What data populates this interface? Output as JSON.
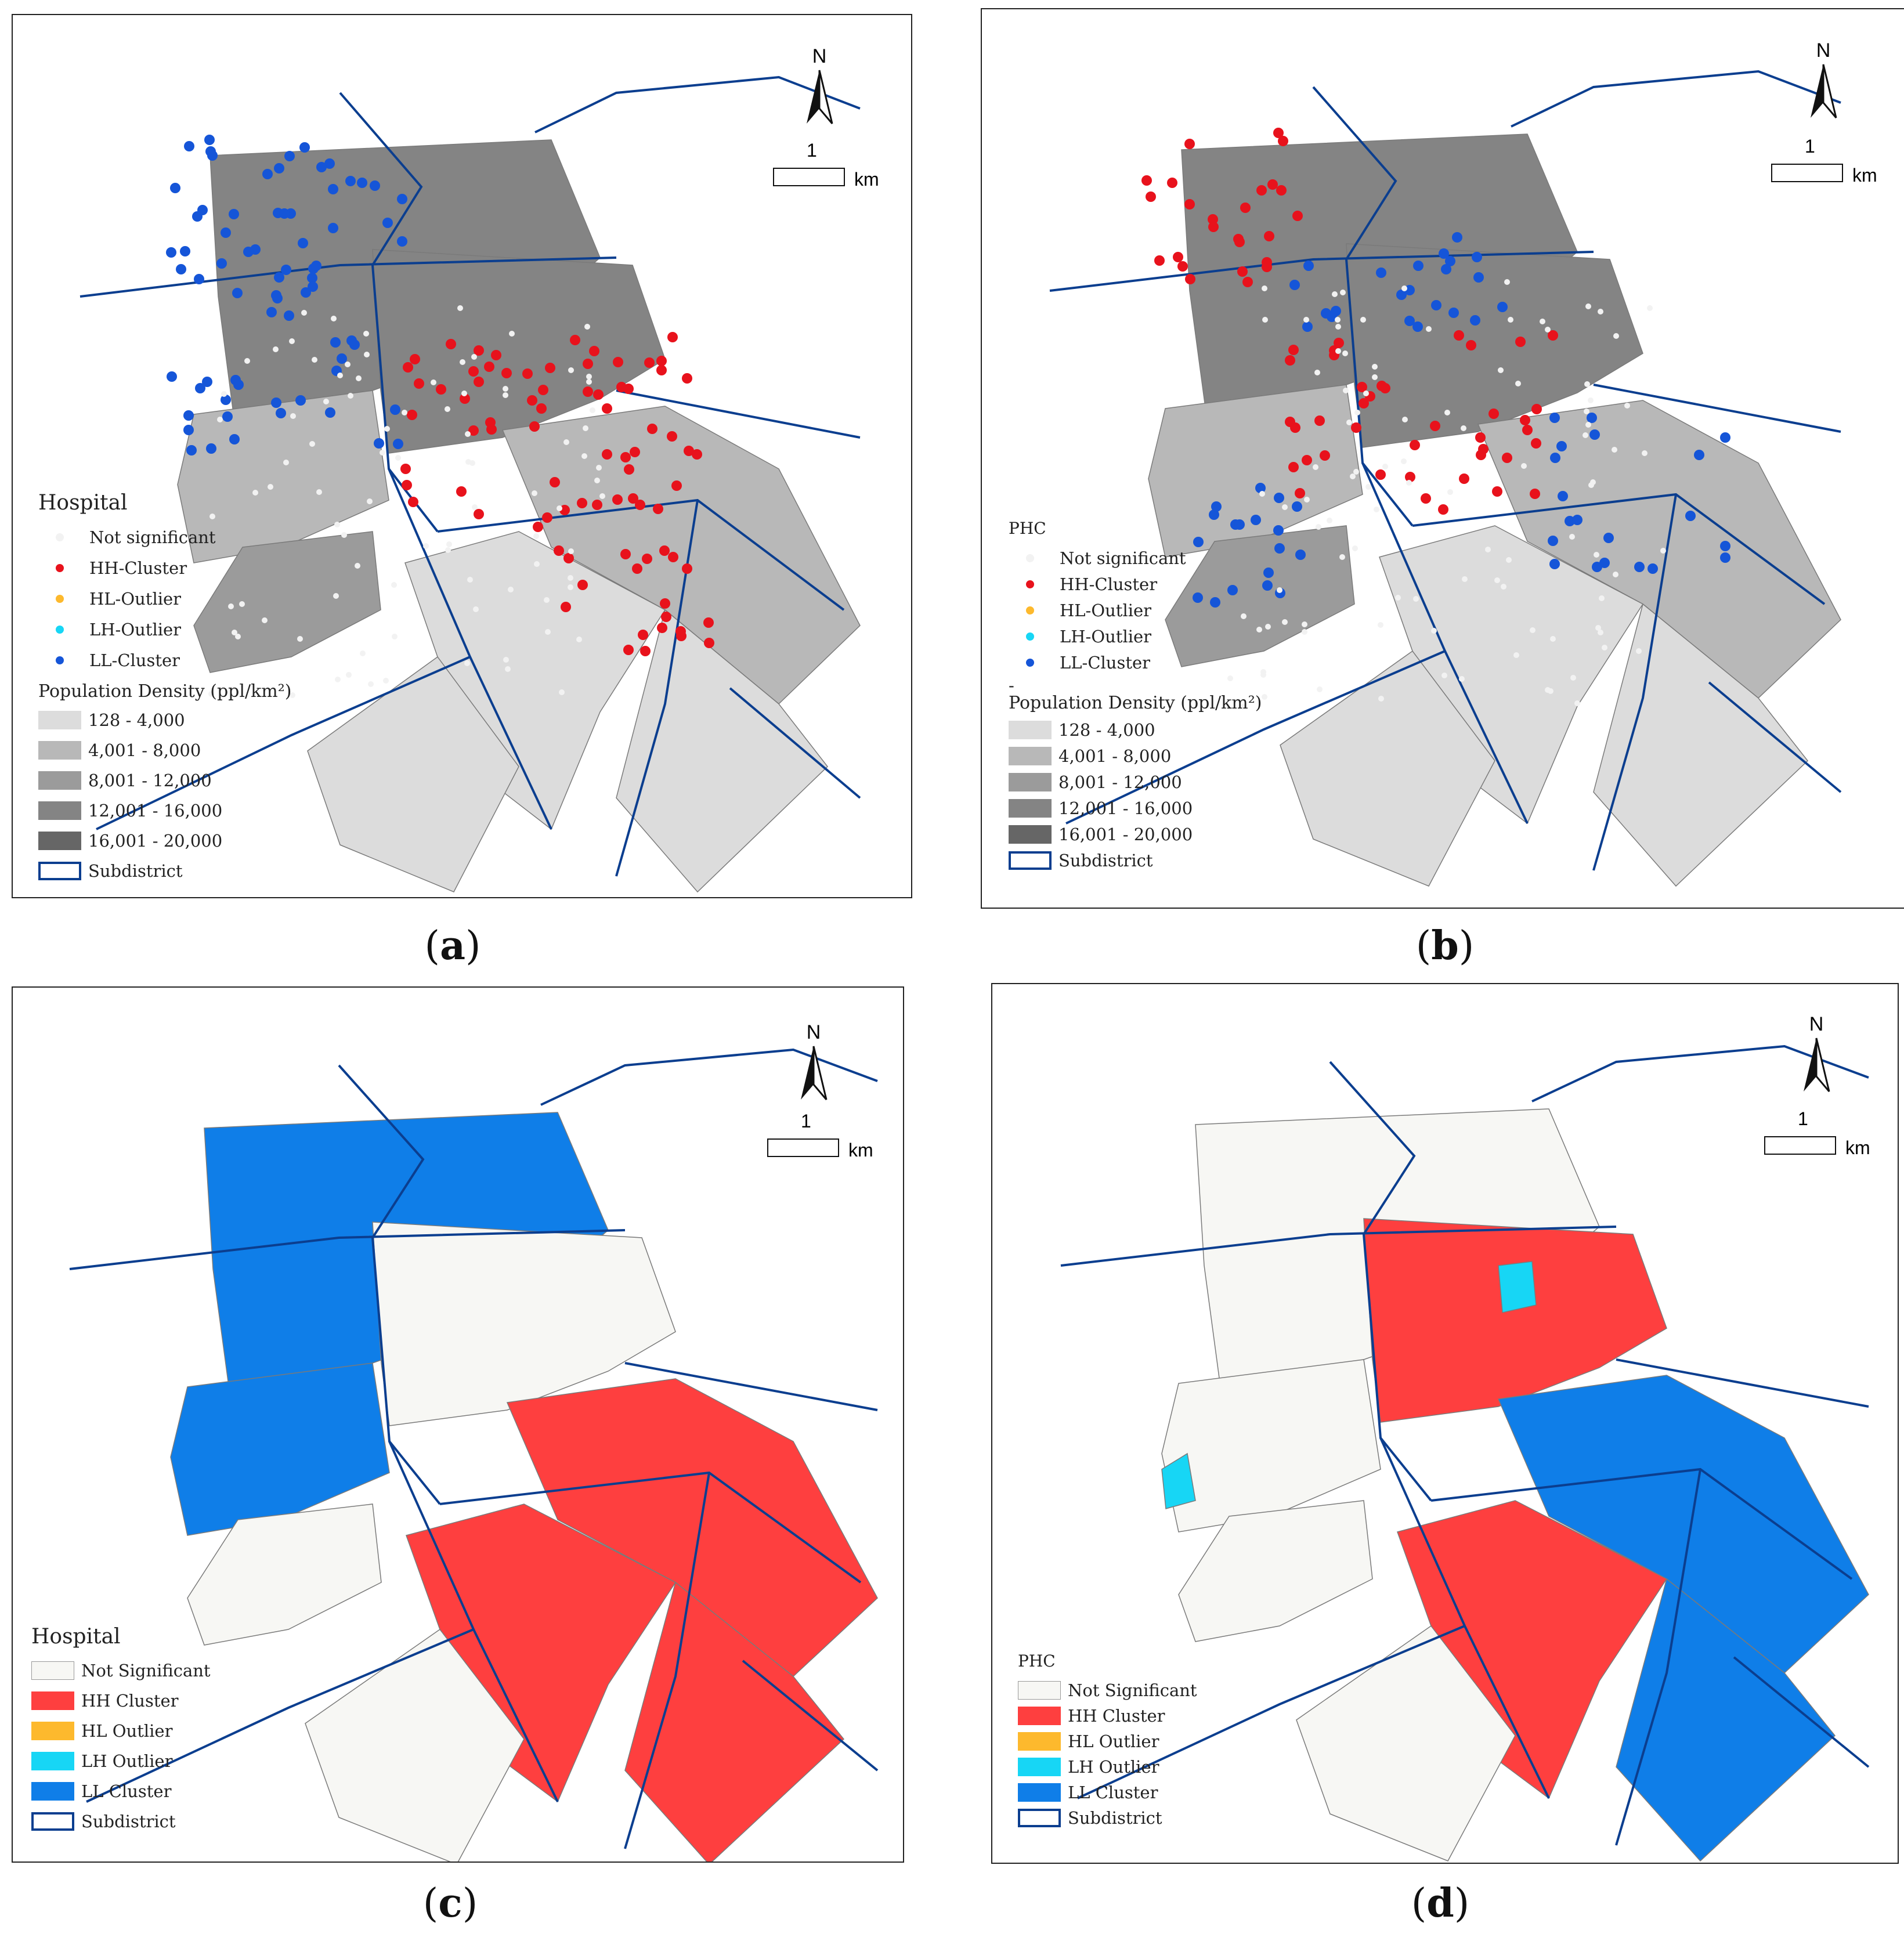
{
  "panels": [
    {
      "id": "a",
      "caption": "a",
      "legend_title": "Hospital",
      "mode": "points",
      "point_items": [
        "Not significant",
        "HH-Cluster",
        "HL-Outlier",
        "LH-Outlier",
        "LL-Cluster"
      ],
      "density_title": "Population Density (ppl/km²)",
      "density_items": [
        "128 - 4,000",
        "4,001 - 8,000",
        "8,001 - 12,000",
        "12,001 - 16,000",
        "16,001 - 20,000"
      ],
      "subdistrict_label": "Subdistrict"
    },
    {
      "id": "b",
      "caption": "b",
      "legend_title": "PHC",
      "mode": "points",
      "point_items": [
        "Not significant",
        "HH-Cluster",
        "HL-Outlier",
        "LH-Outlier",
        "LL-Cluster"
      ],
      "dash": "-",
      "density_title": "Population Density (ppl/km²)",
      "density_items": [
        "128 - 4,000",
        "4,001 - 8,000",
        "8,001 - 12,000",
        "12,001 - 16,000",
        "16,001 - 20,000"
      ],
      "subdistrict_label": "Subdistrict"
    },
    {
      "id": "c",
      "caption": "c",
      "legend_title": "Hospital",
      "mode": "areas",
      "area_items": [
        "Not Significant",
        "HH Cluster",
        "HL Outlier",
        "LH Outlier",
        "LL Cluster"
      ],
      "subdistrict_label": "Subdistrict"
    },
    {
      "id": "d",
      "caption": "d",
      "legend_title": "PHC",
      "mode": "areas",
      "area_items": [
        "Not Significant",
        "HH Cluster",
        "HL Outlier",
        "LH Outlier",
        "LL Cluster"
      ],
      "subdistrict_label": "Subdistrict"
    }
  ],
  "north_label": "N",
  "scale_value": "1",
  "scale_unit": "km",
  "colors": {
    "not_significant_fill": "#f7f7f4",
    "not_significant_dot": "#f2f2f2",
    "hh": "#fe3f3f",
    "hh_dot": "#e8121c",
    "hl": "#fdb92d",
    "lh": "#17d6f5",
    "ll": "#0f7ee8",
    "ll_dot": "#1555d8",
    "subdistrict": "#0b3e8f",
    "density": [
      "#dcdcdc",
      "#b8b8b8",
      "#9b9b9b",
      "#848484",
      "#666666"
    ]
  }
}
